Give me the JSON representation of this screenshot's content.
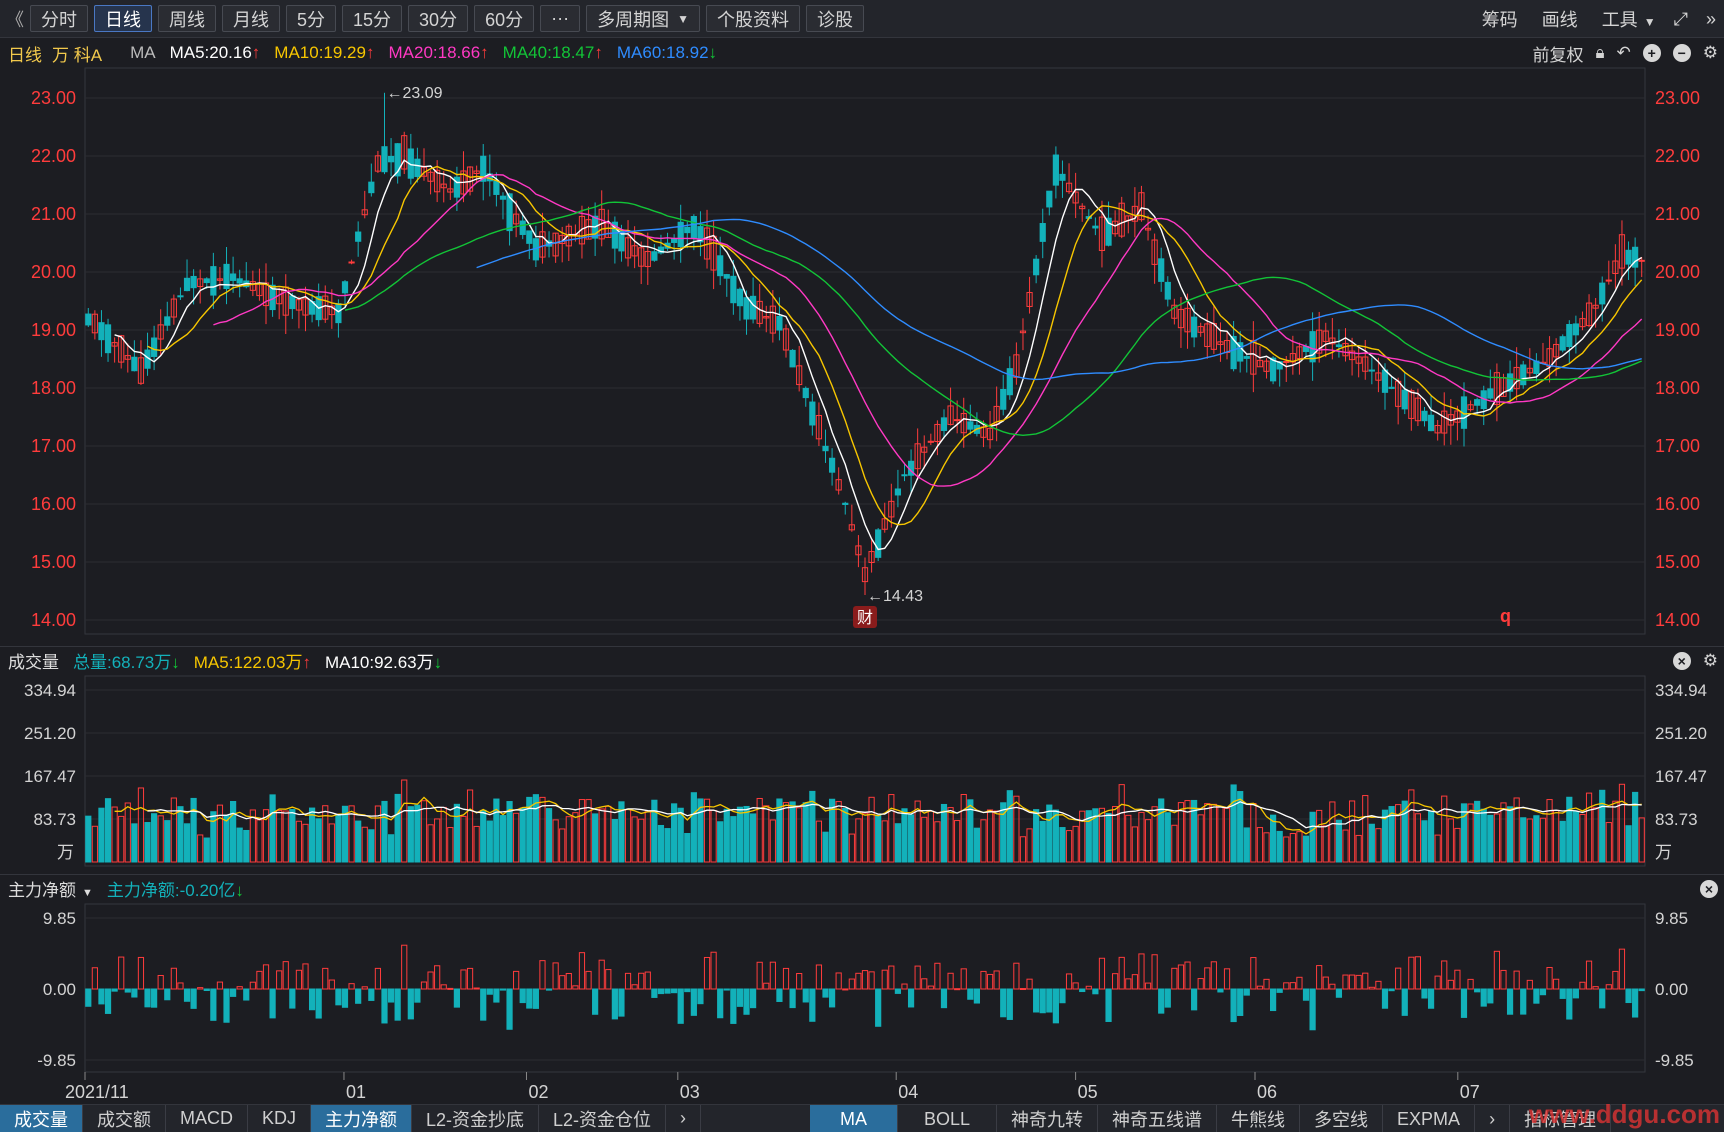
{
  "toolbar": {
    "back": "《",
    "periods": [
      "分时",
      "日线",
      "周线",
      "月线",
      "5分",
      "15分",
      "30分",
      "60分"
    ],
    "active": "日线",
    "more": "···",
    "multi": "多周期图",
    "profile": "个股资料",
    "diagnose": "诊股",
    "right": [
      "筹码",
      "画线",
      "工具"
    ]
  },
  "main_info": {
    "period": "日线",
    "stock": "万 科A",
    "ma_label": "MA",
    "ma5": "MA5:20.16",
    "ma10": "MA10:19.29",
    "ma20": "MA20:18.66",
    "ma40": "MA40:18.47",
    "ma60": "MA60:18.92",
    "adjust": "前复权"
  },
  "price_axis": {
    "ticks": [
      "23.00",
      "22.00",
      "21.00",
      "20.00",
      "19.00",
      "18.00",
      "17.00",
      "16.00",
      "15.00",
      "14.00"
    ],
    "high_label": "←23.09",
    "low_label": "←14.43",
    "fin_badge": "财",
    "marker": "q"
  },
  "vol_info": {
    "label": "成交量",
    "total": "总量:68.73万",
    "ma5": "MA5:122.03万",
    "ma10": "MA10:92.63万"
  },
  "vol_axis": {
    "ticks": [
      "334.94",
      "251.20",
      "167.47",
      "83.73"
    ],
    "unit": "万"
  },
  "flow_info": {
    "label": "主力净额",
    "value": "主力净额:-0.20亿"
  },
  "flow_axis": {
    "ticks": [
      "9.85",
      "0.00",
      "-9.85"
    ]
  },
  "date_axis": [
    "2021/11",
    "01",
    "02",
    "03",
    "04",
    "05",
    "06",
    "07"
  ],
  "bottom_tabs": [
    "成交量",
    "成交额",
    "MACD",
    "KDJ",
    "主力净额",
    "L2-资金抄底",
    "L2-资金仓位"
  ],
  "bottom_right_tabs": [
    "MA",
    "BOLL",
    "神奇九转",
    "神奇五线谱",
    "牛熊线",
    "多空线",
    "EXPMA"
  ],
  "bottom_right_tail": "指标管理",
  "watermark": "www.ddgu.com",
  "colors": {
    "up": "#ff3c3c",
    "down": "#13b1ba",
    "ma5": "#ffffff",
    "ma10": "#f7c600",
    "ma20": "#ff39c4",
    "ma40": "#12c437",
    "ma60": "#2f8cff"
  },
  "chart_data": {
    "type": "candlestick",
    "title": "万 科A",
    "price_range": [
      14,
      23
    ],
    "high": 23.09,
    "low": 14.43,
    "key_points": [
      [
        0,
        19.2
      ],
      [
        8,
        18.3
      ],
      [
        15,
        19.8
      ],
      [
        22,
        19.9
      ],
      [
        30,
        19.5
      ],
      [
        38,
        19.3
      ],
      [
        44,
        21.9
      ],
      [
        48,
        22.0
      ],
      [
        55,
        21.4
      ],
      [
        60,
        21.8
      ],
      [
        68,
        20.4
      ],
      [
        78,
        20.8
      ],
      [
        85,
        20.2
      ],
      [
        92,
        20.8
      ],
      [
        100,
        19.4
      ],
      [
        105,
        19.1
      ],
      [
        110,
        17.6
      ],
      [
        115,
        16.0
      ],
      [
        118,
        14.8
      ],
      [
        124,
        16.5
      ],
      [
        131,
        17.5
      ],
      [
        137,
        17.2
      ],
      [
        141,
        18.4
      ],
      [
        147,
        21.8
      ],
      [
        154,
        20.6
      ],
      [
        160,
        21.1
      ],
      [
        165,
        19.3
      ],
      [
        173,
        18.7
      ],
      [
        180,
        18.3
      ],
      [
        188,
        18.9
      ],
      [
        195,
        18.3
      ],
      [
        205,
        17.3
      ],
      [
        213,
        17.9
      ],
      [
        222,
        18.5
      ],
      [
        229,
        19.4
      ],
      [
        233,
        20.3
      ],
      [
        236,
        20.2
      ]
    ],
    "volume_range": [
      0,
      334.94
    ],
    "flow_range": [
      -9.85,
      9.85
    ],
    "ma_final": {
      "MA5": 20.16,
      "MA10": 19.29,
      "MA20": 18.66,
      "MA40": 18.47,
      "MA60": 18.92
    }
  }
}
